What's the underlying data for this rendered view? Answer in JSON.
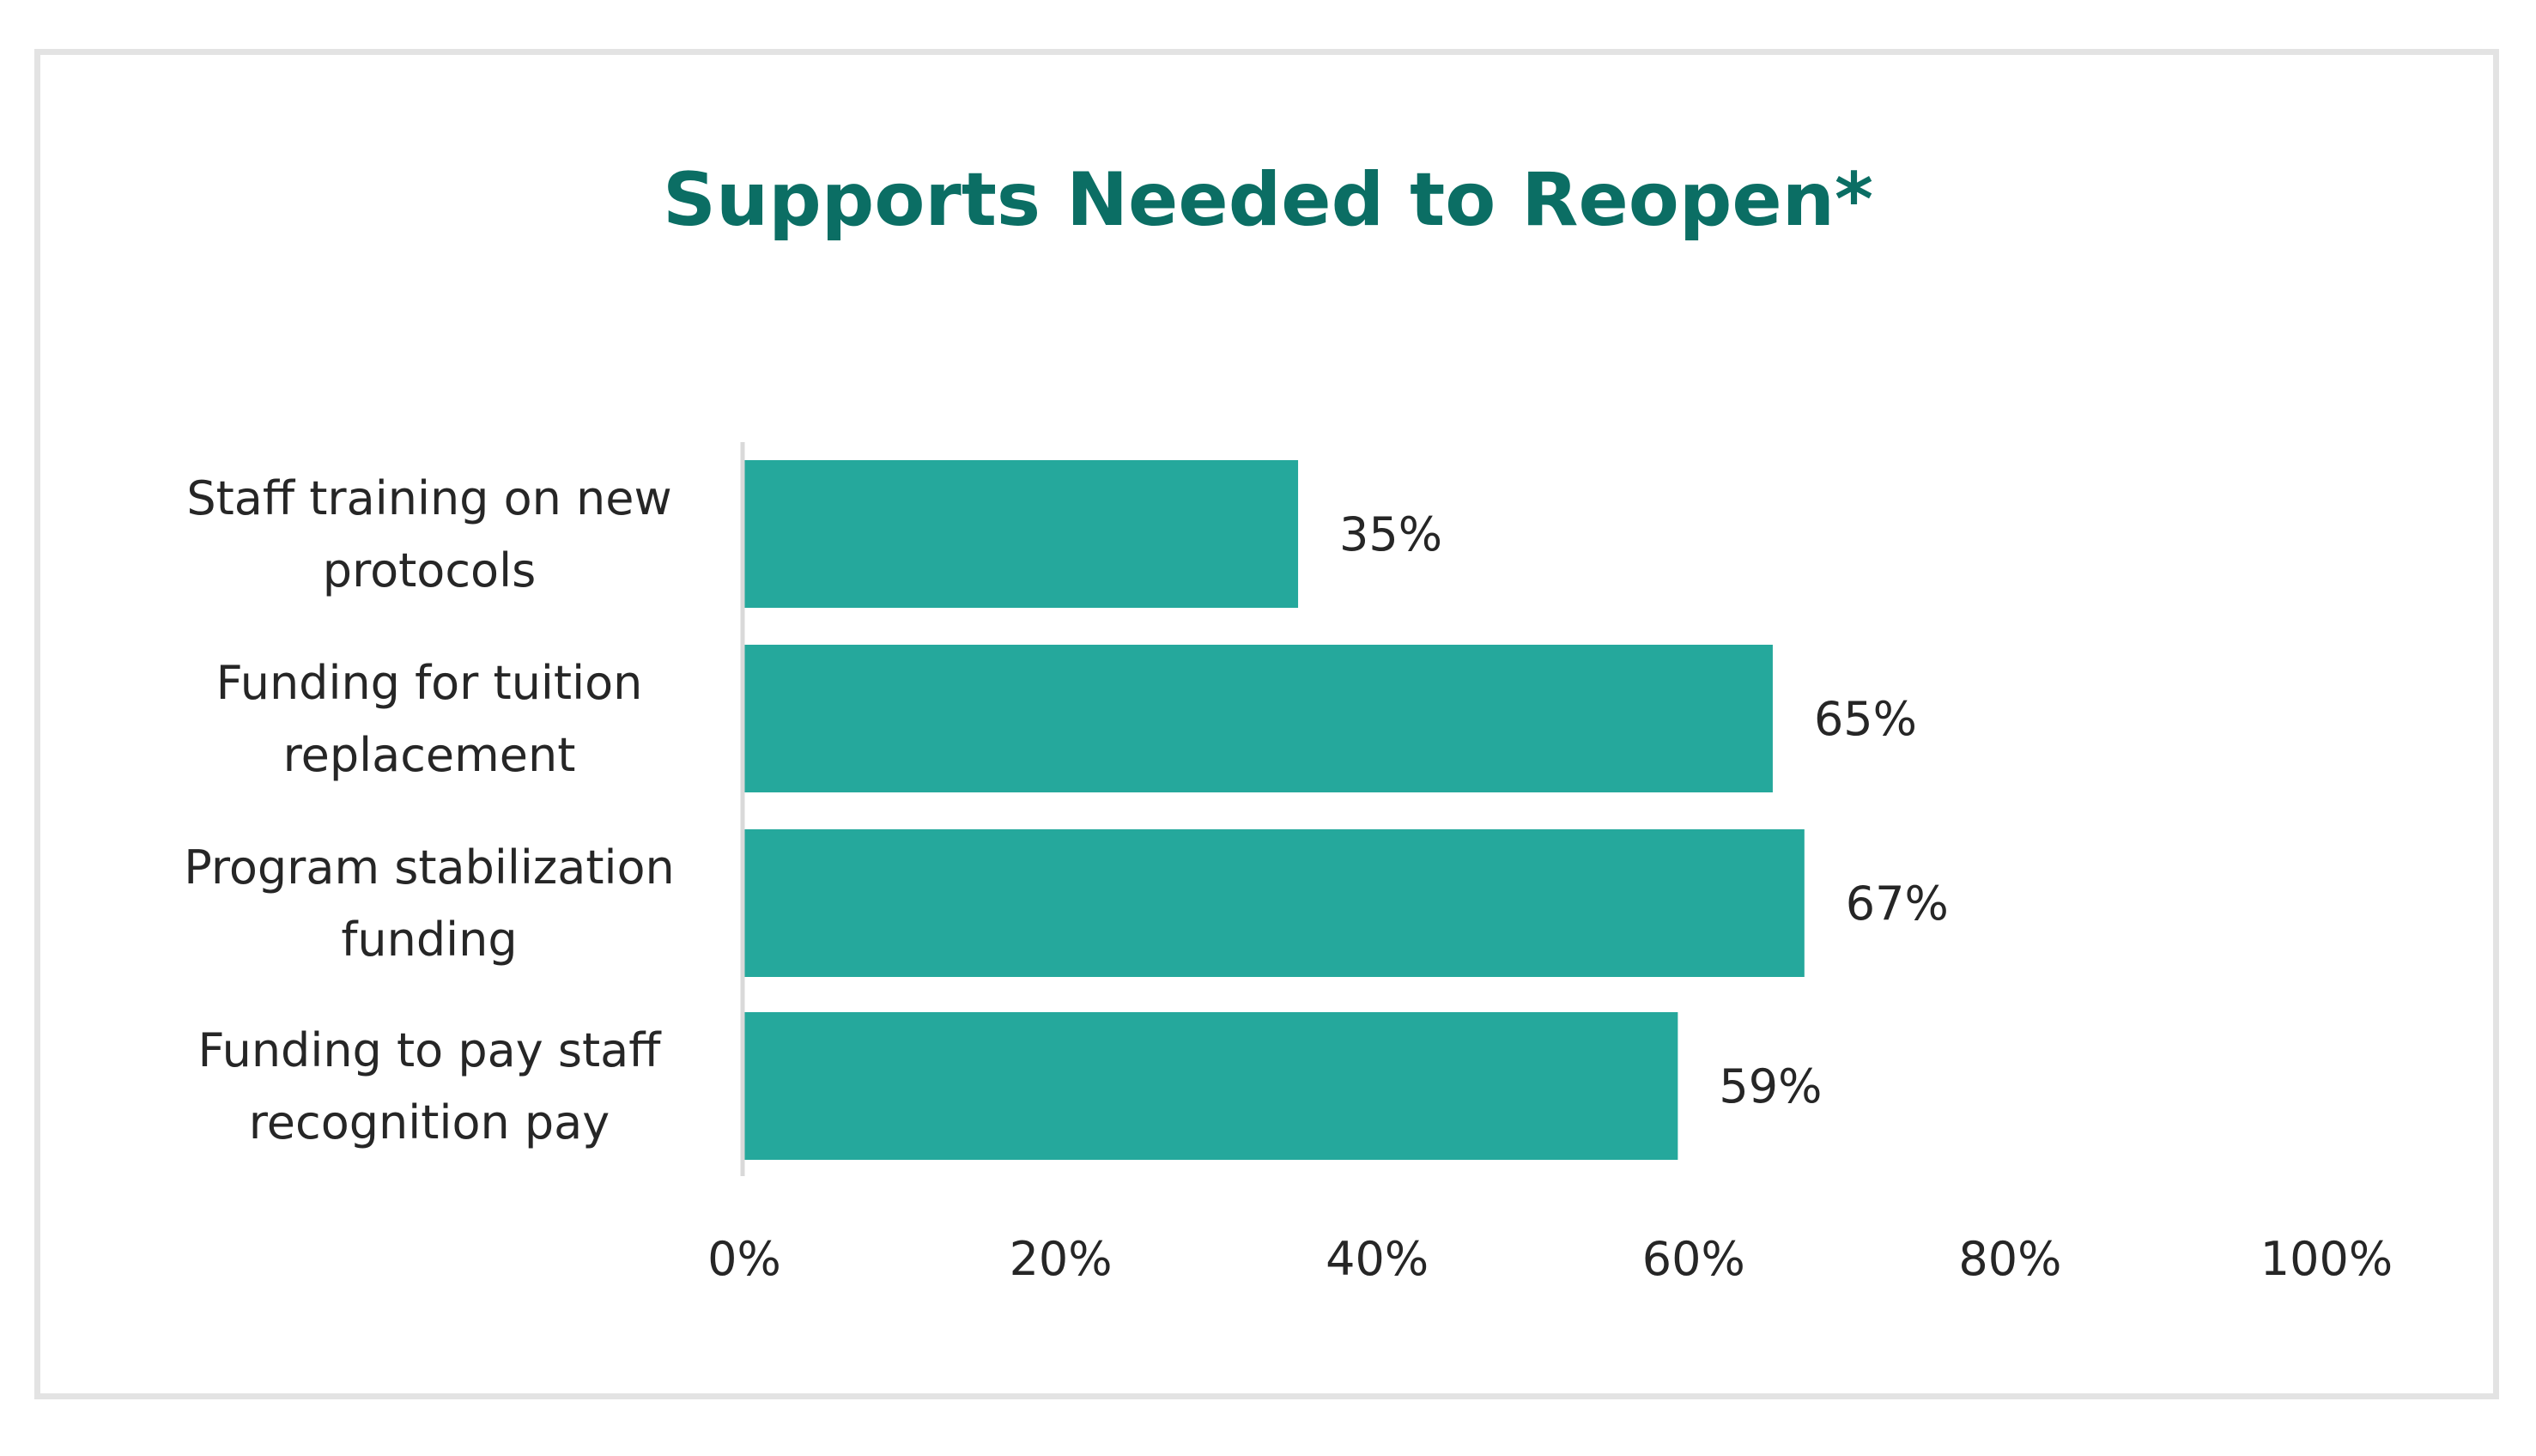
{
  "chart_data": {
    "type": "bar",
    "orientation": "horizontal",
    "title": "Supports Needed to Reopen*",
    "categories": [
      [
        "Staff training on new",
        "protocols"
      ],
      [
        "Funding for tuition",
        "replacement"
      ],
      [
        "Program stabilization",
        "funding"
      ],
      [
        "Funding to pay staff",
        "recognition pay"
      ]
    ],
    "values": [
      35,
      65,
      67,
      59
    ],
    "data_labels": [
      "35%",
      "65%",
      "67%",
      "59%"
    ],
    "xlim": [
      0,
      100
    ],
    "x_ticks": [
      0,
      20,
      40,
      60,
      80,
      100
    ],
    "x_tick_labels": [
      "0%",
      "20%",
      "40%",
      "60%",
      "80%",
      "100%"
    ],
    "xlabel": "",
    "ylabel": "",
    "grid": false,
    "legend": "none",
    "colors": {
      "bar": "#25a89c",
      "title": "#0b6e64",
      "axis": "#d9d9d9",
      "text": "#262626",
      "frame": "#e3e3e3"
    }
  }
}
